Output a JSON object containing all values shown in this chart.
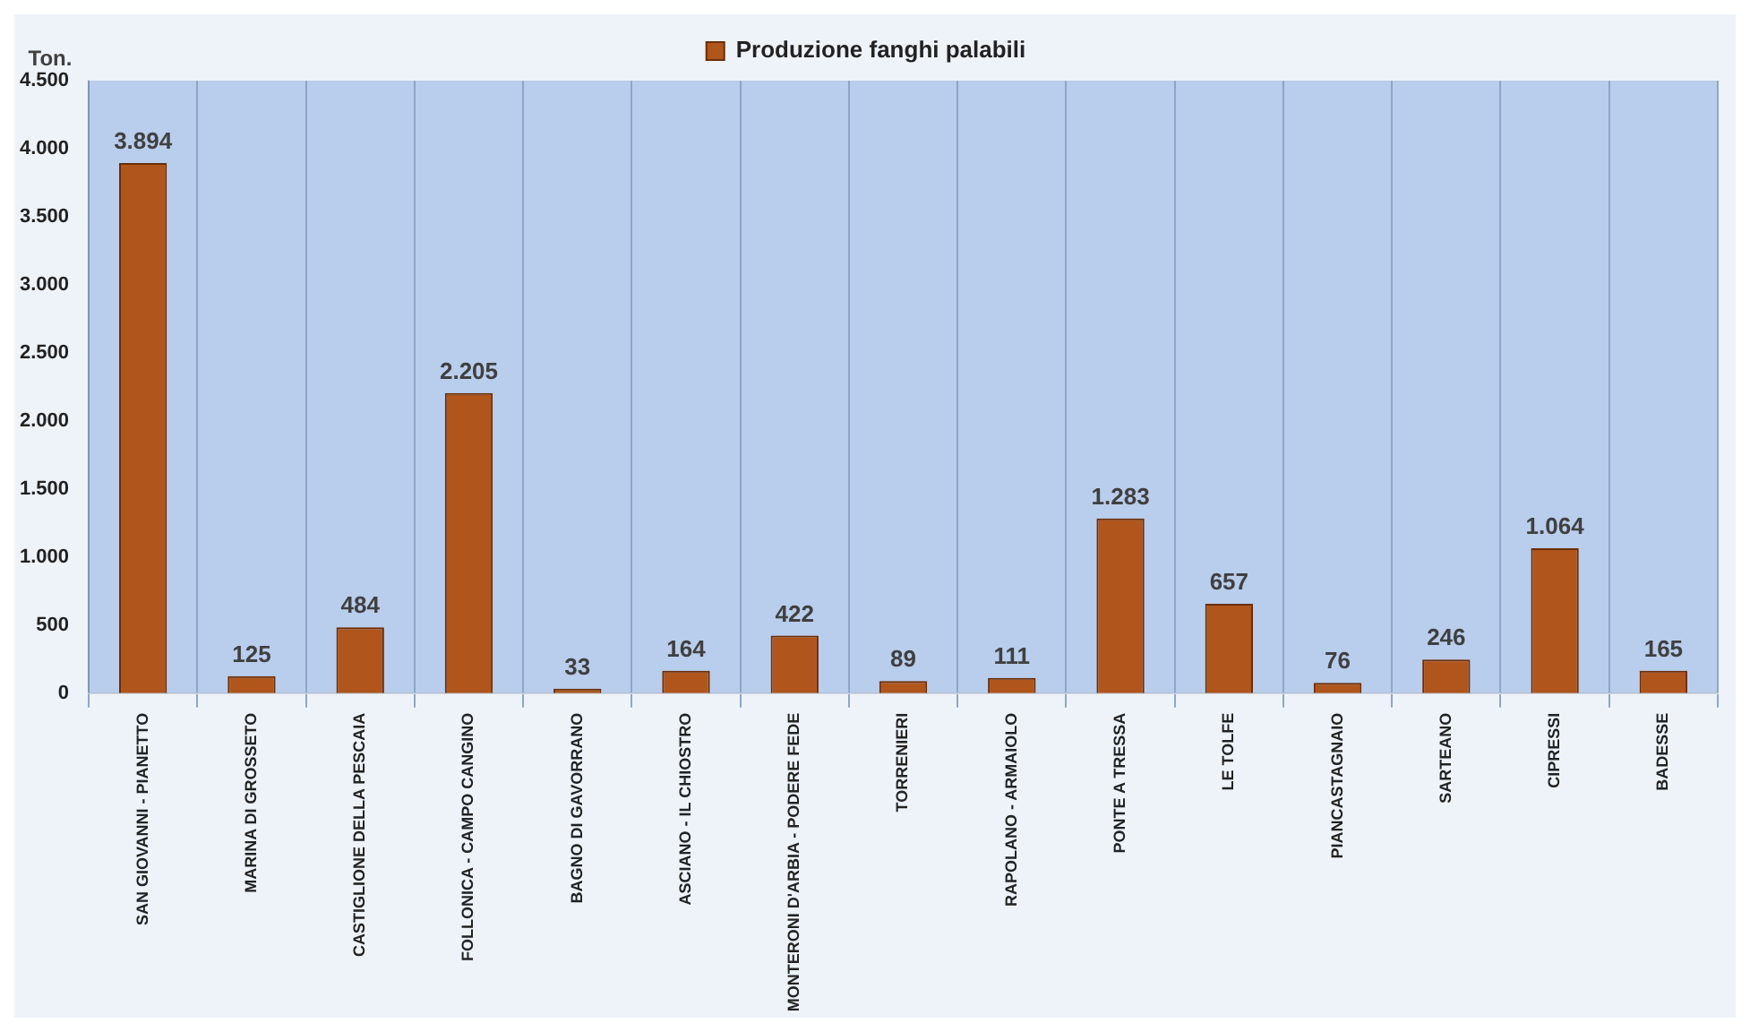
{
  "chart_data": {
    "type": "bar",
    "ylabel": "Ton.",
    "categories": [
      "SAN GIOVANNI - PIANETTO",
      "MARINA DI GROSSETO",
      "CASTIGLIONE DELLA PESCAIA",
      "FOLLONICA - CAMPO CANGINO",
      "BAGNO DI GAVORRANO",
      "ASCIANO - IL CHIOSTRO",
      "MONTERONI D'ARBIA - PODERE FEDE",
      "TORRENIERI",
      "RAPOLANO - ARMAIOLO",
      "PONTE A TRESSA",
      "LE TOLFE",
      "PIANCASTAGNAIO",
      "SARTEANO",
      "CIPRESSI",
      "BADESSE"
    ],
    "series": [
      {
        "name": "Produzione fanghi palabili",
        "color": "#b0561c",
        "values": [
          3894,
          125,
          484,
          2205,
          33,
          164,
          422,
          89,
          111,
          1283,
          657,
          76,
          246,
          1064,
          165
        ],
        "value_labels": [
          "3.894",
          "125",
          "484",
          "2.205",
          "33",
          "164",
          "422",
          "89",
          "111",
          "1.283",
          "657",
          "76",
          "246",
          "1.064",
          "165"
        ]
      }
    ],
    "ylim": [
      0,
      4500
    ],
    "yticks": [
      0,
      500,
      {
        "value": 1000,
        "label": "1.000"
      },
      {
        "value": 1500,
        "label": "1.500"
      },
      {
        "value": 2000,
        "label": "2.000"
      },
      {
        "value": 2500,
        "label": "2.500"
      },
      {
        "value": 3000,
        "label": "3.000"
      },
      {
        "value": 3500,
        "label": "3.500"
      },
      {
        "value": 4000,
        "label": "4.000"
      },
      {
        "value": 4500,
        "label": "4.500"
      }
    ],
    "grid": "x",
    "legend": "top"
  }
}
